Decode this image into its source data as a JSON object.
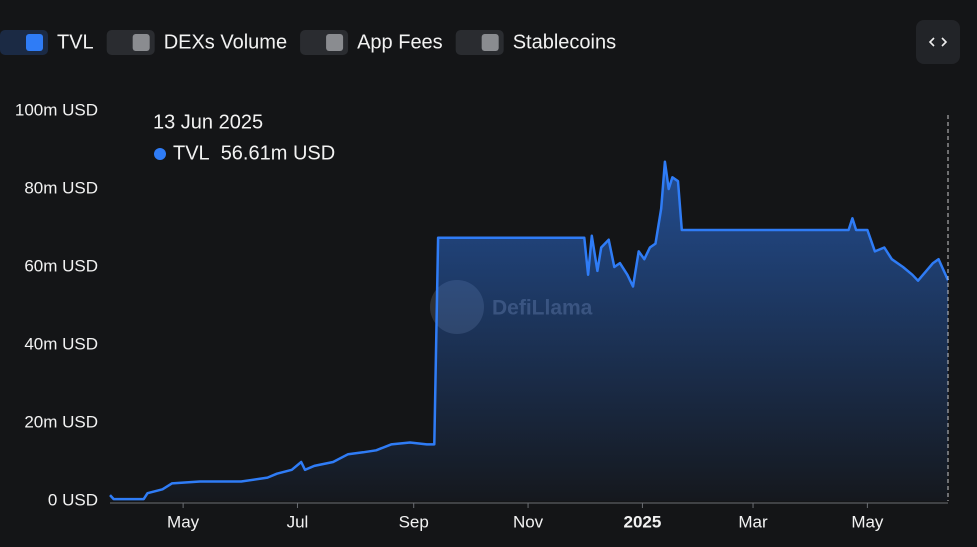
{
  "chart_data": {
    "type": "area",
    "toggles": [
      {
        "name": "TVL",
        "active": true
      },
      {
        "name": "DEXs Volume",
        "active": false
      },
      {
        "name": "App Fees",
        "active": false
      },
      {
        "name": "Stablecoins",
        "active": false
      }
    ],
    "watermark": "DefiLlama",
    "tooltip": {
      "date": "13 Jun 2025",
      "value_label": "56.61m USD"
    },
    "x": [
      "2024-03-23",
      "2024-03-25",
      "2024-04-10",
      "2024-04-12",
      "2024-04-20",
      "2024-04-25",
      "2024-05-10",
      "2024-06-01",
      "2024-06-15",
      "2024-06-20",
      "2024-06-28",
      "2024-07-03",
      "2024-07-05",
      "2024-07-10",
      "2024-07-20",
      "2024-07-28",
      "2024-08-05",
      "2024-08-12",
      "2024-08-20",
      "2024-08-30",
      "2024-09-08",
      "2024-09-12",
      "2024-09-14",
      "2024-12-01",
      "2024-12-03",
      "2024-12-05",
      "2024-12-08",
      "2024-12-10",
      "2024-12-14",
      "2024-12-17",
      "2024-12-20",
      "2024-12-24",
      "2024-12-27",
      "2024-12-30",
      "2025-01-02",
      "2025-01-05",
      "2025-01-08",
      "2025-01-11",
      "2025-01-13",
      "2025-01-15",
      "2025-01-17",
      "2025-01-20",
      "2025-01-22",
      "2025-04-21",
      "2025-04-23",
      "2025-04-25",
      "2025-05-01",
      "2025-05-05",
      "2025-05-10",
      "2025-05-14",
      "2025-05-20",
      "2025-05-25",
      "2025-05-28",
      "2025-06-05",
      "2025-06-08",
      "2025-06-13"
    ],
    "series": [
      {
        "name": "TVL",
        "color": "#2f7cf6",
        "values": [
          1.5,
          0.5,
          0.5,
          2,
          3,
          4.5,
          5,
          5,
          6,
          7,
          8,
          10,
          8,
          9,
          10,
          12,
          12.5,
          13,
          14.5,
          15,
          14.5,
          14.5,
          67.5,
          67.5,
          58,
          68,
          59,
          65,
          67,
          60,
          61,
          58,
          55,
          64,
          62,
          65,
          66,
          75,
          87,
          80,
          83,
          82,
          69.5,
          69.5,
          72.5,
          69.5,
          69.5,
          64,
          65,
          62,
          60,
          58,
          56.5,
          61,
          62,
          56.61
        ]
      }
    ],
    "xlim": [
      "2024-03-23",
      "2025-06-13"
    ],
    "xticks": [
      {
        "value": "2024-05-01",
        "label": "May"
      },
      {
        "value": "2024-07-01",
        "label": "Jul"
      },
      {
        "value": "2024-09-01",
        "label": "Sep"
      },
      {
        "value": "2024-11-01",
        "label": "Nov"
      },
      {
        "value": "2025-01-01",
        "label": "2025"
      },
      {
        "value": "2025-03-01",
        "label": "Mar"
      },
      {
        "value": "2025-05-01",
        "label": "May"
      }
    ],
    "ylim": [
      0,
      100
    ],
    "yticks": [
      {
        "value": 0,
        "label": "0 USD"
      },
      {
        "value": 20,
        "label": "20m USD"
      },
      {
        "value": 40,
        "label": "40m USD"
      },
      {
        "value": 60,
        "label": "60m USD"
      },
      {
        "value": 80,
        "label": "80m USD"
      },
      {
        "value": 100,
        "label": "100m USD"
      }
    ]
  }
}
